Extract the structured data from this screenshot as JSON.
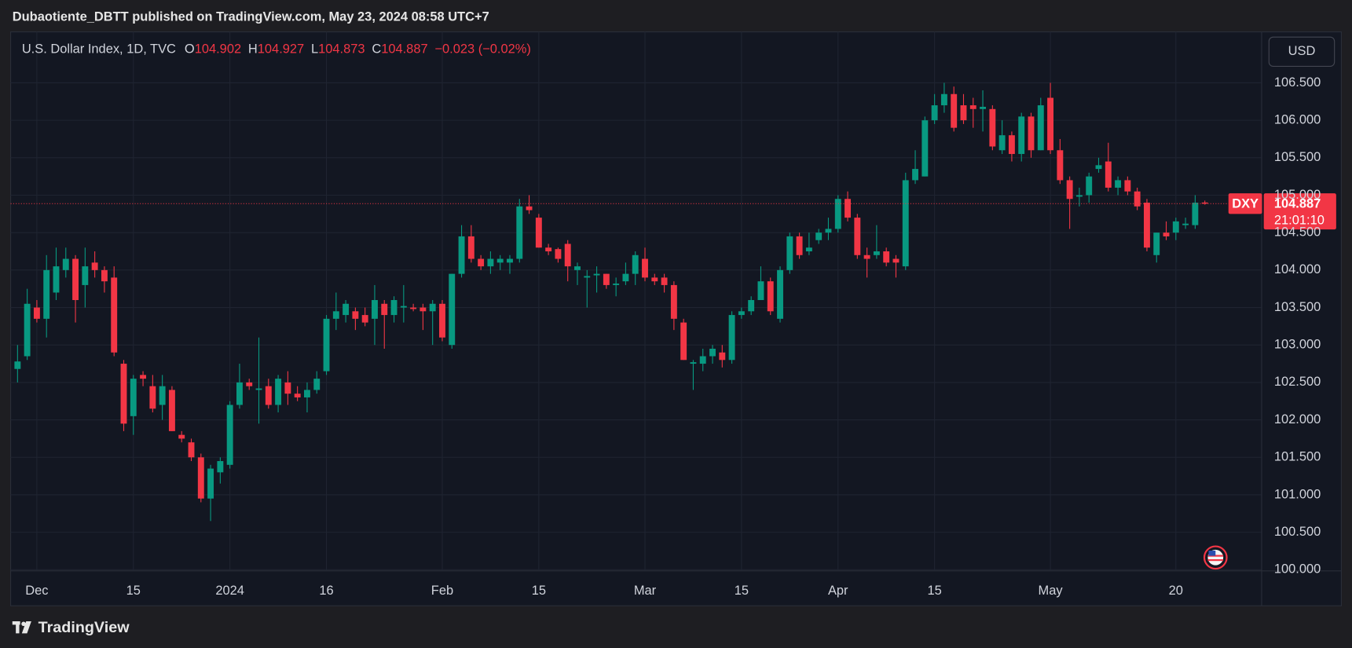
{
  "header": {
    "text": "Dubaotiente_DBTT published on TradingView.com, May 23, 2024 08:58 UTC+7"
  },
  "footer": {
    "brand": "TradingView"
  },
  "chart_data": {
    "type": "candlestick",
    "title": "U.S. Dollar Index, 1D, TVC",
    "ohlc_labels": [
      "O",
      "H",
      "L",
      "C"
    ],
    "change_label": "−0.023 (−0.02%)",
    "currency": "USD",
    "symbol": "DXY",
    "countdown": "21:01:10",
    "up_color": "#089981",
    "down_color": "#f23645",
    "grid": true,
    "categories": [
      null,
      null,
      "Dec",
      null,
      null,
      null,
      null,
      null,
      null,
      null,
      null,
      null,
      "15",
      null,
      null,
      null,
      null,
      null,
      null,
      null,
      null,
      null,
      "2024",
      null,
      null,
      null,
      null,
      null,
      null,
      null,
      null,
      null,
      "16",
      null,
      null,
      null,
      null,
      null,
      null,
      null,
      null,
      null,
      null,
      null,
      "Feb",
      null,
      null,
      null,
      null,
      null,
      null,
      null,
      null,
      null,
      "15",
      null,
      null,
      null,
      null,
      null,
      null,
      null,
      null,
      null,
      null,
      "Mar",
      null,
      null,
      null,
      null,
      null,
      null,
      null,
      null,
      null,
      "15",
      null,
      null,
      null,
      null,
      null,
      null,
      null,
      null,
      null,
      "Apr",
      null,
      null,
      null,
      null,
      null,
      null,
      null,
      null,
      null,
      "15",
      null,
      null,
      null,
      null,
      null,
      null,
      null,
      null,
      null,
      null,
      null,
      "May",
      null,
      null,
      null,
      null,
      null,
      null,
      null,
      null,
      null,
      null,
      null,
      null,
      "20",
      null,
      null,
      null
    ],
    "open": [
      102.68,
      102.85,
      103.5,
      103.35,
      103.7,
      104.0,
      104.15,
      103.8,
      104.1,
      104.0,
      103.9,
      102.75,
      102.05,
      102.6,
      102.45,
      102.2,
      102.4,
      101.8,
      101.7,
      101.5,
      100.95,
      101.3,
      101.4,
      102.2,
      102.5,
      102.4,
      102.45,
      102.2,
      102.5,
      102.35,
      102.3,
      102.4,
      102.65,
      103.35,
      103.4,
      103.45,
      103.4,
      103.35,
      103.55,
      103.4,
      103.5,
      103.5,
      103.5,
      103.45,
      103.55,
      103.0,
      103.95,
      104.45,
      104.15,
      104.05,
      104.1,
      104.1,
      104.15,
      104.85,
      104.7,
      104.3,
      104.28,
      104.35,
      104.0,
      103.9,
      103.93,
      103.95,
      103.8,
      103.85,
      103.95,
      104.15,
      103.9,
      103.9,
      103.8,
      103.3,
      102.75,
      102.75,
      102.85,
      102.9,
      102.8,
      103.4,
      103.45,
      103.6,
      103.85,
      103.35,
      104.0,
      104.45,
      104.25,
      104.4,
      104.5,
      104.55,
      104.95,
      104.7,
      104.2,
      104.2,
      104.25,
      104.15,
      104.05,
      105.2,
      105.25,
      106.0,
      106.2,
      106.35,
      106.2,
      106.2,
      106.15,
      106.15,
      105.6,
      105.8,
      105.55,
      106.05,
      105.6,
      106.3,
      105.6,
      105.2,
      104.98,
      105.0,
      105.35,
      105.45,
      105.1,
      105.2,
      105.05,
      104.9,
      104.2,
      104.5,
      104.5,
      104.6,
      104.6,
      104.902
    ],
    "high": [
      103.0,
      103.75,
      103.6,
      104.2,
      104.3,
      104.3,
      104.2,
      104.3,
      104.25,
      104.05,
      104.05,
      102.8,
      102.6,
      102.65,
      102.6,
      102.6,
      102.45,
      101.85,
      101.75,
      101.55,
      101.4,
      101.5,
      102.25,
      102.75,
      102.55,
      103.1,
      102.55,
      102.6,
      102.65,
      102.45,
      102.5,
      102.65,
      103.4,
      103.7,
      103.6,
      103.5,
      103.5,
      103.8,
      103.6,
      103.65,
      103.8,
      103.55,
      103.55,
      103.6,
      103.6,
      103.95,
      104.6,
      104.6,
      104.2,
      104.25,
      104.2,
      104.2,
      104.95,
      105.0,
      104.75,
      104.35,
      104.3,
      104.4,
      104.1,
      104.0,
      104.05,
      103.95,
      103.9,
      104.1,
      104.25,
      104.3,
      103.95,
      103.95,
      103.85,
      103.35,
      102.8,
      102.95,
      103.0,
      103.0,
      103.45,
      103.5,
      103.65,
      104.05,
      103.9,
      104.05,
      104.5,
      104.5,
      104.5,
      104.55,
      104.7,
      105.0,
      105.05,
      104.75,
      104.3,
      104.6,
      104.3,
      104.2,
      105.3,
      105.6,
      106.05,
      106.35,
      106.5,
      106.45,
      106.35,
      106.3,
      106.4,
      106.2,
      106.0,
      105.85,
      106.1,
      106.1,
      106.3,
      106.5,
      105.75,
      105.25,
      105.1,
      105.3,
      105.5,
      105.7,
      105.25,
      105.25,
      105.1,
      104.95,
      104.5,
      104.65,
      104.7,
      104.7,
      105.0,
      104.927
    ],
    "low": [
      102.5,
      102.8,
      103.3,
      103.1,
      103.6,
      103.9,
      103.3,
      103.5,
      103.9,
      103.7,
      102.85,
      101.85,
      101.8,
      102.45,
      102.1,
      102.0,
      101.85,
      101.7,
      101.45,
      100.9,
      100.65,
      101.15,
      101.35,
      102.15,
      102.4,
      101.95,
      102.15,
      102.1,
      102.2,
      102.25,
      102.1,
      102.35,
      102.6,
      103.2,
      103.3,
      103.2,
      103.25,
      103.0,
      102.95,
      103.3,
      103.3,
      103.45,
      103.2,
      103.0,
      103.05,
      102.95,
      103.9,
      104.1,
      104.0,
      103.95,
      104.0,
      103.95,
      104.1,
      104.75,
      104.3,
      104.2,
      104.1,
      103.85,
      103.8,
      103.5,
      103.7,
      103.75,
      103.65,
      103.8,
      103.8,
      103.85,
      103.8,
      103.7,
      103.2,
      102.8,
      102.4,
      102.65,
      102.75,
      102.7,
      102.75,
      103.35,
      103.4,
      103.6,
      103.4,
      103.3,
      103.95,
      104.15,
      104.2,
      104.35,
      104.4,
      104.5,
      104.65,
      104.15,
      103.9,
      104.15,
      104.05,
      103.9,
      104.0,
      105.15,
      105.25,
      105.95,
      106.1,
      105.85,
      105.95,
      105.9,
      105.85,
      105.6,
      105.55,
      105.45,
      105.45,
      105.5,
      105.6,
      105.55,
      105.15,
      104.55,
      104.85,
      104.9,
      105.3,
      105.05,
      105.0,
      105.0,
      104.8,
      104.25,
      104.1,
      104.4,
      104.4,
      104.55,
      104.55,
      104.873
    ],
    "close": [
      102.78,
      103.55,
      103.35,
      104.0,
      104.05,
      104.15,
      103.6,
      104.05,
      104.0,
      103.85,
      102.9,
      101.95,
      102.55,
      102.55,
      102.15,
      102.45,
      101.85,
      101.75,
      101.5,
      100.95,
      101.35,
      101.45,
      102.2,
      102.5,
      102.45,
      102.42,
      102.2,
      102.55,
      102.35,
      102.3,
      102.4,
      102.55,
      103.35,
      103.45,
      103.55,
      103.35,
      103.3,
      103.6,
      103.4,
      103.6,
      103.52,
      103.48,
      103.45,
      103.55,
      103.1,
      103.95,
      104.45,
      104.15,
      104.05,
      104.15,
      104.15,
      104.15,
      104.85,
      104.8,
      104.3,
      104.25,
      104.15,
      104.05,
      104.05,
      103.92,
      103.95,
      103.8,
      103.82,
      103.95,
      104.2,
      103.9,
      103.85,
      103.8,
      103.35,
      102.8,
      102.77,
      102.85,
      102.95,
      102.8,
      103.4,
      103.45,
      103.6,
      103.85,
      103.45,
      104.0,
      104.45,
      104.2,
      104.3,
      104.5,
      104.55,
      104.95,
      104.7,
      104.2,
      104.15,
      104.25,
      104.1,
      104.1,
      105.2,
      105.35,
      106.0,
      106.2,
      106.35,
      105.9,
      106.0,
      106.15,
      106.18,
      105.65,
      105.8,
      105.55,
      106.05,
      105.6,
      106.2,
      105.6,
      105.2,
      104.95,
      105.0,
      105.25,
      105.4,
      105.1,
      105.2,
      105.05,
      104.85,
      104.3,
      104.5,
      104.45,
      104.65,
      104.62,
      104.9,
      104.887
    ],
    "ylim": [
      99.99,
      107.18
    ],
    "yticks": [
      {
        "value": 100,
        "label": "100.000"
      },
      {
        "value": 100.5,
        "label": "100.500"
      },
      {
        "value": 101,
        "label": "101.000"
      },
      {
        "value": 101.5,
        "label": "101.500"
      },
      {
        "value": 102,
        "label": "102.000"
      },
      {
        "value": 102.5,
        "label": "102.500"
      },
      {
        "value": 103,
        "label": "103.000"
      },
      {
        "value": 103.5,
        "label": "103.500"
      },
      {
        "value": 104,
        "label": "104.000"
      },
      {
        "value": 104.5,
        "label": "104.500"
      },
      {
        "value": 105,
        "label": "105.000"
      },
      {
        "value": 105.5,
        "label": "105.500"
      },
      {
        "value": 106,
        "label": "106.000"
      },
      {
        "value": 106.5,
        "label": "106.500"
      }
    ]
  }
}
